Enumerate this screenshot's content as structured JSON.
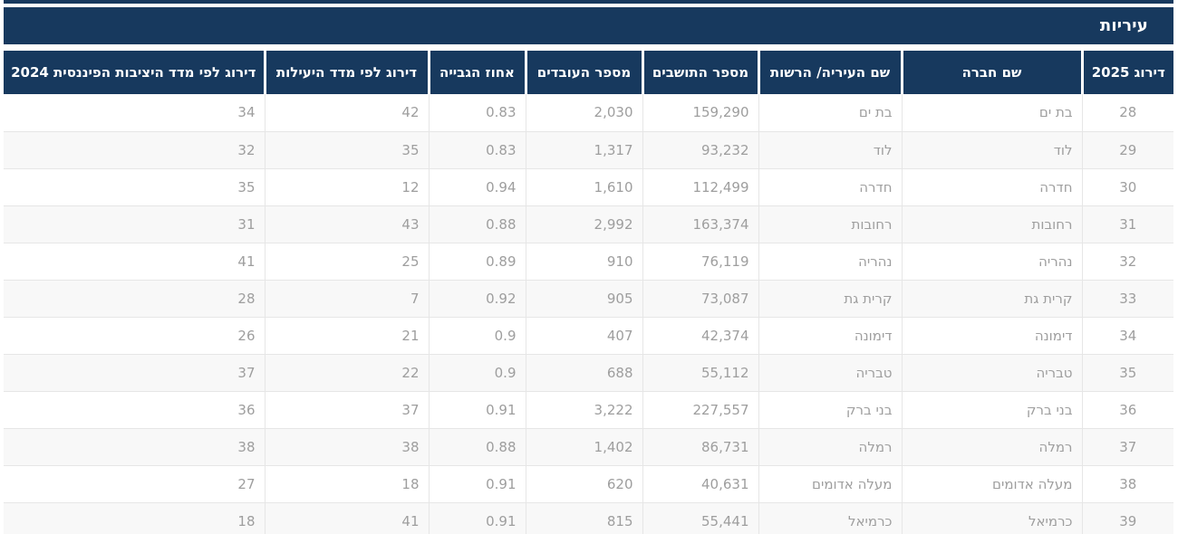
{
  "section": {
    "title": "עיריות"
  },
  "table": {
    "column_keys": [
      "rank_2025",
      "company_name",
      "city_name",
      "residents",
      "employees",
      "collection_rate",
      "efficiency_rank",
      "stability_rank_2024"
    ],
    "columns": [
      "דירוג 2025",
      "שם חברה",
      "שם העיריה/ הרשות",
      "מספר התושבים",
      "מספר העובדים",
      "אחוז הגבייה",
      "דירוג לפי מדד היעילות",
      "דירוג לפי מדד היציבות הפיננסית 2024"
    ],
    "rows": [
      [
        "28",
        "בת ים",
        "בת ים",
        "159,290",
        "2,030",
        "0.83",
        "42",
        "34"
      ],
      [
        "29",
        "לוד",
        "לוד",
        "93,232",
        "1,317",
        "0.83",
        "35",
        "32"
      ],
      [
        "30",
        "חדרה",
        "חדרה",
        "112,499",
        "1,610",
        "0.94",
        "12",
        "35"
      ],
      [
        "31",
        "רחובות",
        "רחובות",
        "163,374",
        "2,992",
        "0.88",
        "43",
        "31"
      ],
      [
        "32",
        "נהריה",
        "נהריה",
        "76,119",
        "910",
        "0.89",
        "25",
        "41"
      ],
      [
        "33",
        "קרית גת",
        "קרית גת",
        "73,087",
        "905",
        "0.92",
        "7",
        "28"
      ],
      [
        "34",
        "דימונה",
        "דימונה",
        "42,374",
        "407",
        "0.9",
        "21",
        "26"
      ],
      [
        "35",
        "טבריה",
        "טבריה",
        "55,112",
        "688",
        "0.9",
        "22",
        "37"
      ],
      [
        "36",
        "בני ברק",
        "בני ברק",
        "227,557",
        "3,222",
        "0.91",
        "37",
        "36"
      ],
      [
        "37",
        "רמלה",
        "רמלה",
        "86,731",
        "1,402",
        "0.88",
        "38",
        "38"
      ],
      [
        "38",
        "מעלה אדומים",
        "מעלה אדומים",
        "40,631",
        "620",
        "0.91",
        "18",
        "27"
      ],
      [
        "39",
        "כרמיאל",
        "כרמיאל",
        "55,441",
        "815",
        "0.91",
        "41",
        "18"
      ]
    ]
  },
  "colors": {
    "header_navy": "#17395E",
    "header_text": "#FFFFFF",
    "row_alt": "#F8F8F8",
    "cell_text": "#9E9E9E",
    "grid_line": "#E6E6E6"
  }
}
